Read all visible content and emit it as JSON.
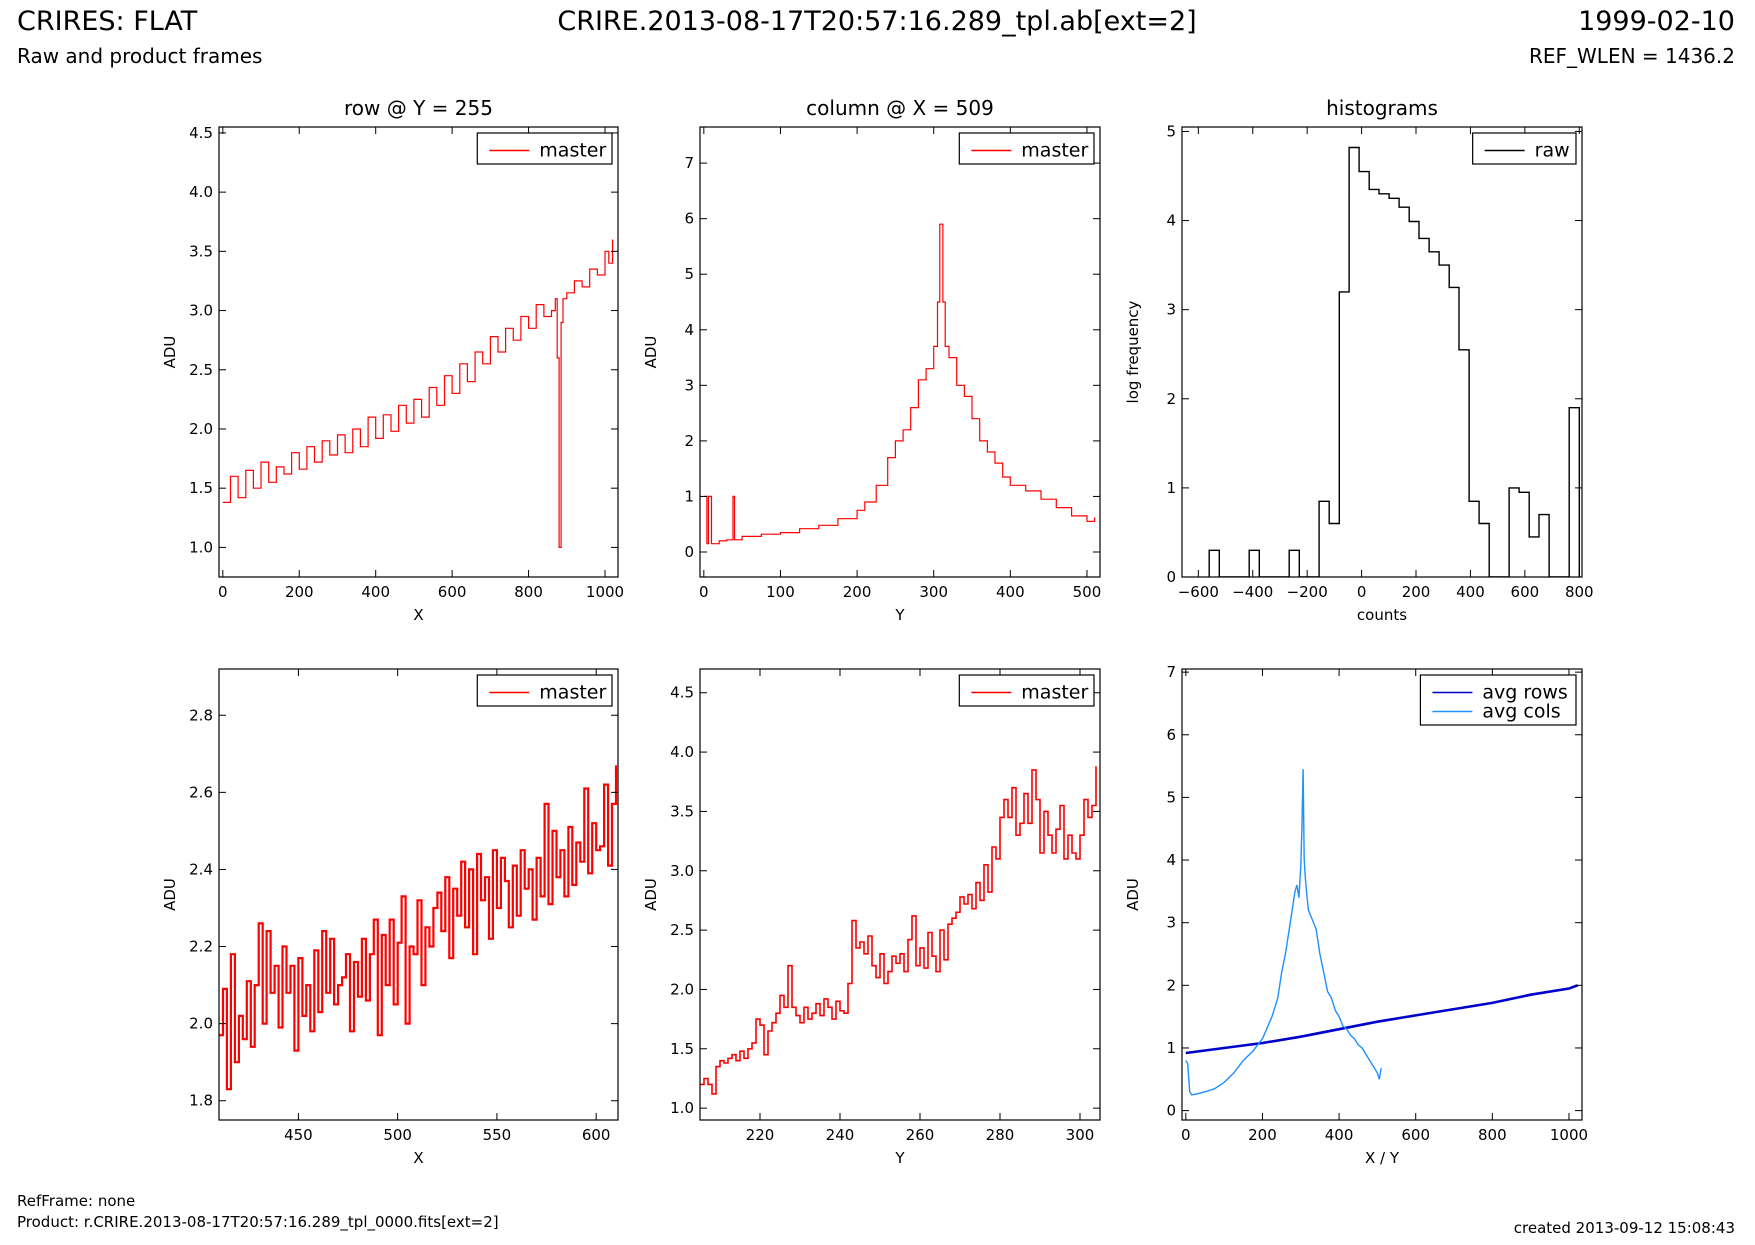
{
  "header": {
    "title_left": "CRIRES: FLAT",
    "title_center": "CRIRE.2013-08-17T20:57:16.289_tpl.ab[ext=2]",
    "title_right": "1999-02-10",
    "subtitle_left": "Raw and product frames",
    "subtitle_right": "REF_WLEN = 1436.2"
  },
  "footer": {
    "refframe": "RefFrame: none",
    "product": "Product: r.CRIRE.2013-08-17T20:57:16.289_tpl_0000.fits[ext=2]",
    "created": "created 2013-09-12 15:08:43"
  },
  "chart_data": [
    {
      "id": "p1",
      "type": "line",
      "style": "steps",
      "title": "row @ Y = 255",
      "xlabel": "X",
      "ylabel": "ADU",
      "xlim": [
        -10,
        1034
      ],
      "ylim": [
        0.75,
        4.55
      ],
      "xticks": [
        0,
        200,
        400,
        600,
        800,
        1000
      ],
      "yticks": [
        1.0,
        1.5,
        2.0,
        2.5,
        3.0,
        3.5,
        4.0,
        4.5
      ],
      "ytick_decimals": 1,
      "legend": {
        "position": "top-right",
        "entries": [
          {
            "label": "master",
            "color": "#ff0000"
          }
        ]
      },
      "series": [
        {
          "name": "master",
          "color": "#ff0000",
          "line_width": 1.2,
          "x": [
            0,
            20,
            40,
            60,
            80,
            100,
            120,
            140,
            160,
            180,
            200,
            220,
            240,
            260,
            280,
            300,
            320,
            340,
            360,
            380,
            400,
            420,
            440,
            460,
            480,
            500,
            520,
            540,
            560,
            580,
            600,
            620,
            640,
            660,
            680,
            700,
            720,
            740,
            760,
            780,
            800,
            820,
            840,
            860,
            870,
            875,
            880,
            885,
            890,
            900,
            920,
            940,
            960,
            980,
            1000,
            1010,
            1020
          ],
          "y": [
            1.38,
            1.6,
            1.42,
            1.65,
            1.5,
            1.72,
            1.55,
            1.68,
            1.62,
            1.8,
            1.66,
            1.85,
            1.72,
            1.9,
            1.78,
            1.95,
            1.8,
            2.0,
            1.85,
            2.1,
            1.92,
            2.12,
            1.98,
            2.2,
            2.05,
            2.25,
            2.1,
            2.35,
            2.2,
            2.45,
            2.3,
            2.55,
            2.4,
            2.65,
            2.55,
            2.78,
            2.65,
            2.85,
            2.75,
            2.95,
            2.85,
            3.05,
            2.95,
            3.0,
            3.1,
            2.6,
            1.0,
            2.9,
            3.1,
            3.15,
            3.25,
            3.2,
            3.35,
            3.3,
            3.5,
            3.4,
            3.6
          ]
        }
      ]
    },
    {
      "id": "p2",
      "type": "line",
      "style": "steps",
      "title": "column @ X = 509",
      "xlabel": "Y",
      "ylabel": "ADU",
      "xlim": [
        -5,
        517
      ],
      "ylim": [
        -0.45,
        7.65
      ],
      "xticks": [
        0,
        100,
        200,
        300,
        400,
        500
      ],
      "yticks": [
        0,
        1,
        2,
        3,
        4,
        5,
        6,
        7
      ],
      "ytick_decimals": 0,
      "legend": {
        "position": "top-right",
        "entries": [
          {
            "label": "master",
            "color": "#ff0000"
          }
        ]
      },
      "series": [
        {
          "name": "master",
          "color": "#ff0000",
          "line_width": 1.2,
          "x": [
            0,
            4,
            6,
            10,
            20,
            30,
            38,
            40,
            50,
            75,
            100,
            125,
            150,
            175,
            200,
            210,
            225,
            240,
            250,
            260,
            270,
            280,
            290,
            300,
            305,
            308,
            312,
            315,
            320,
            330,
            340,
            350,
            360,
            370,
            380,
            390,
            400,
            420,
            440,
            460,
            480,
            500,
            510
          ],
          "y": [
            1.0,
            0.15,
            1.0,
            0.15,
            0.2,
            0.22,
            1.0,
            0.22,
            0.28,
            0.32,
            0.35,
            0.42,
            0.48,
            0.6,
            0.75,
            0.9,
            1.2,
            1.7,
            2.0,
            2.2,
            2.6,
            3.1,
            3.3,
            3.7,
            4.5,
            5.9,
            4.5,
            3.7,
            3.5,
            3.0,
            2.8,
            2.4,
            2.0,
            1.8,
            1.6,
            1.35,
            1.2,
            1.1,
            0.95,
            0.8,
            0.65,
            0.55,
            0.62
          ]
        }
      ]
    },
    {
      "id": "p3",
      "type": "line",
      "style": "steps",
      "title": "histograms",
      "xlabel": "counts",
      "ylabel": "log frequency",
      "xlim": [
        -660,
        810
      ],
      "ylim": [
        0,
        5.05
      ],
      "xticks": [
        -600,
        -400,
        -200,
        0,
        200,
        400,
        600,
        800
      ],
      "yticks": [
        0,
        1,
        2,
        3,
        4,
        5
      ],
      "ytick_decimals": 0,
      "legend": {
        "position": "top-right",
        "entries": [
          {
            "label": "raw",
            "color": "#000000"
          }
        ]
      },
      "series": [
        {
          "name": "raw",
          "color": "#000000",
          "line_width": 1.4,
          "edges": [
            -560,
            -523,
            -487,
            -450,
            -413,
            -376,
            -340,
            -303,
            -266,
            -229,
            -193,
            -156,
            -119,
            -82,
            -46,
            -9,
            28,
            64,
            101,
            138,
            175,
            211,
            248,
            285,
            322,
            358,
            395,
            432,
            469,
            505,
            542,
            579,
            616,
            652,
            689,
            726,
            763,
            800
          ],
          "values": [
            0.3,
            0,
            0,
            0,
            0.3,
            0,
            0,
            0,
            0.3,
            0,
            0,
            0.85,
            0.6,
            3.2,
            4.82,
            4.55,
            4.35,
            4.3,
            4.25,
            4.15,
            3.99,
            3.8,
            3.65,
            3.5,
            3.25,
            2.55,
            0.85,
            0.6,
            0,
            0,
            1.0,
            0.95,
            0.45,
            0.7,
            0,
            0,
            1.9
          ]
        }
      ]
    },
    {
      "id": "p4",
      "type": "line",
      "style": "steps",
      "title": "",
      "xlabel": "X",
      "ylabel": "ADU",
      "xlim": [
        410,
        611
      ],
      "ylim": [
        1.75,
        2.92
      ],
      "xticks": [
        450,
        500,
        550,
        600
      ],
      "yticks": [
        1.8,
        2.0,
        2.2,
        2.4,
        2.6,
        2.8
      ],
      "ytick_decimals": 1,
      "legend": {
        "position": "top-right",
        "entries": [
          {
            "label": "master",
            "color": "#ff0000"
          }
        ]
      },
      "series": [
        {
          "name": "master",
          "color": "#ff0000",
          "line_width": 2.2,
          "x": [
            410,
            412,
            414,
            416,
            418,
            420,
            422,
            424,
            426,
            428,
            430,
            432,
            434,
            436,
            438,
            440,
            442,
            444,
            446,
            448,
            450,
            452,
            454,
            456,
            458,
            460,
            462,
            464,
            466,
            468,
            470,
            472,
            474,
            476,
            478,
            480,
            482,
            484,
            486,
            488,
            490,
            492,
            494,
            496,
            498,
            500,
            502,
            504,
            506,
            508,
            510,
            512,
            514,
            516,
            518,
            520,
            522,
            524,
            526,
            528,
            530,
            532,
            534,
            536,
            538,
            540,
            542,
            544,
            546,
            548,
            550,
            552,
            554,
            556,
            558,
            560,
            562,
            564,
            566,
            568,
            570,
            572,
            574,
            576,
            578,
            580,
            582,
            584,
            586,
            588,
            590,
            592,
            594,
            596,
            598,
            600,
            602,
            604,
            606,
            608,
            610
          ],
          "y": [
            1.97,
            2.09,
            1.83,
            2.18,
            1.9,
            2.02,
            1.96,
            2.11,
            1.94,
            2.1,
            2.26,
            2.0,
            2.24,
            2.08,
            2.15,
            1.99,
            2.2,
            2.08,
            2.15,
            1.93,
            2.17,
            2.02,
            2.1,
            1.98,
            2.19,
            2.03,
            2.24,
            2.08,
            2.22,
            2.05,
            2.1,
            2.12,
            2.18,
            1.98,
            2.16,
            2.07,
            2.22,
            2.06,
            2.18,
            2.27,
            1.97,
            2.23,
            2.1,
            2.27,
            2.05,
            2.21,
            2.33,
            2.0,
            2.2,
            2.18,
            2.32,
            2.1,
            2.25,
            2.2,
            2.3,
            2.34,
            2.24,
            2.38,
            2.17,
            2.35,
            2.28,
            2.42,
            2.25,
            2.4,
            2.18,
            2.44,
            2.32,
            2.38,
            2.22,
            2.45,
            2.3,
            2.43,
            2.37,
            2.25,
            2.41,
            2.28,
            2.45,
            2.35,
            2.4,
            2.27,
            2.43,
            2.33,
            2.57,
            2.31,
            2.5,
            2.38,
            2.45,
            2.33,
            2.51,
            2.36,
            2.47,
            2.42,
            2.61,
            2.39,
            2.52,
            2.45,
            2.46,
            2.62,
            2.41,
            2.57,
            2.67
          ]
        }
      ]
    },
    {
      "id": "p5",
      "type": "line",
      "style": "steps",
      "title": "",
      "xlabel": "Y",
      "ylabel": "ADU",
      "xlim": [
        205,
        305
      ],
      "ylim": [
        0.9,
        4.7
      ],
      "xticks": [
        220,
        240,
        260,
        280,
        300
      ],
      "yticks": [
        1.0,
        1.5,
        2.0,
        2.5,
        3.0,
        3.5,
        4.0,
        4.5
      ],
      "ytick_decimals": 1,
      "legend": {
        "position": "top-right",
        "entries": [
          {
            "label": "master",
            "color": "#ff0000"
          }
        ]
      },
      "series": [
        {
          "name": "master",
          "color": "#ff0000",
          "line_width": 1.6,
          "x": [
            205,
            206,
            207,
            208,
            209,
            210,
            211,
            212,
            213,
            214,
            215,
            216,
            217,
            218,
            219,
            220,
            221,
            222,
            223,
            224,
            225,
            226,
            227,
            228,
            229,
            230,
            231,
            232,
            233,
            234,
            235,
            236,
            237,
            238,
            239,
            240,
            241,
            242,
            243,
            244,
            245,
            246,
            247,
            248,
            249,
            250,
            251,
            252,
            253,
            254,
            255,
            256,
            257,
            258,
            259,
            260,
            261,
            262,
            263,
            264,
            265,
            266,
            267,
            268,
            269,
            270,
            271,
            272,
            273,
            274,
            275,
            276,
            277,
            278,
            279,
            280,
            281,
            282,
            283,
            284,
            285,
            286,
            287,
            288,
            289,
            290,
            291,
            292,
            293,
            294,
            295,
            296,
            297,
            298,
            299,
            300,
            301,
            302,
            303,
            304
          ],
          "y": [
            1.2,
            1.25,
            1.2,
            1.12,
            1.35,
            1.4,
            1.38,
            1.42,
            1.45,
            1.4,
            1.48,
            1.42,
            1.5,
            1.55,
            1.75,
            1.7,
            1.45,
            1.65,
            1.72,
            1.8,
            1.95,
            1.85,
            2.2,
            1.85,
            1.78,
            1.72,
            1.85,
            1.75,
            1.8,
            1.88,
            1.78,
            1.92,
            1.85,
            1.75,
            1.9,
            1.82,
            1.8,
            2.05,
            2.58,
            2.35,
            2.4,
            2.3,
            2.45,
            2.2,
            2.1,
            2.3,
            2.05,
            2.15,
            2.28,
            2.22,
            2.3,
            2.15,
            2.42,
            2.62,
            2.2,
            2.35,
            2.18,
            2.48,
            2.28,
            2.15,
            2.5,
            2.25,
            2.55,
            2.6,
            2.65,
            2.78,
            2.72,
            2.8,
            2.68,
            2.9,
            2.75,
            3.05,
            2.82,
            3.2,
            3.1,
            3.45,
            3.6,
            3.45,
            3.7,
            3.3,
            3.4,
            3.65,
            3.4,
            3.85,
            3.6,
            3.15,
            3.5,
            3.3,
            3.15,
            3.35,
            3.55,
            3.1,
            3.3,
            3.15,
            3.1,
            3.3,
            3.6,
            3.45,
            3.55,
            3.88
          ]
        }
      ]
    },
    {
      "id": "p6",
      "type": "line",
      "style": "line",
      "title": "",
      "xlabel": "X / Y",
      "ylabel": "ADU",
      "xlim": [
        -10,
        1034
      ],
      "ylim": [
        -0.15,
        7.05
      ],
      "xticks": [
        0,
        200,
        400,
        600,
        800,
        1000
      ],
      "yticks": [
        0,
        1,
        2,
        3,
        4,
        5,
        6,
        7
      ],
      "ytick_decimals": 0,
      "legend": {
        "position": "top-right",
        "entries": [
          {
            "label": "avg rows",
            "color": "#0000cc"
          },
          {
            "label": "avg cols",
            "color": "#1e90ff"
          }
        ]
      },
      "series": [
        {
          "name": "avg rows",
          "color": "#0000cc",
          "line_width": 2.6,
          "x": [
            0,
            100,
            200,
            300,
            400,
            500,
            600,
            700,
            800,
            900,
            1000,
            1023
          ],
          "y": [
            0.92,
            1.0,
            1.08,
            1.18,
            1.3,
            1.42,
            1.52,
            1.62,
            1.72,
            1.85,
            1.95,
            2.0
          ]
        },
        {
          "name": "avg cols",
          "color": "#1e90ff",
          "line_width": 1.4,
          "x": [
            0,
            5,
            10,
            15,
            25,
            50,
            75,
            100,
            125,
            150,
            175,
            200,
            225,
            240,
            250,
            260,
            270,
            280,
            285,
            290,
            295,
            300,
            303,
            306,
            309,
            312,
            315,
            320,
            330,
            340,
            350,
            360,
            370,
            380,
            390,
            400,
            410,
            420,
            430,
            440,
            450,
            460,
            470,
            480,
            490,
            500,
            505,
            510
          ],
          "y": [
            0.8,
            0.75,
            0.3,
            0.25,
            0.26,
            0.3,
            0.35,
            0.45,
            0.6,
            0.8,
            0.95,
            1.15,
            1.5,
            1.8,
            2.2,
            2.5,
            2.9,
            3.3,
            3.5,
            3.6,
            3.4,
            3.9,
            4.5,
            5.45,
            4.0,
            3.7,
            3.5,
            3.2,
            3.05,
            2.9,
            2.5,
            2.2,
            1.9,
            1.8,
            1.6,
            1.5,
            1.35,
            1.3,
            1.2,
            1.15,
            1.05,
            1.0,
            0.9,
            0.8,
            0.7,
            0.6,
            0.5,
            0.68
          ]
        }
      ]
    }
  ]
}
